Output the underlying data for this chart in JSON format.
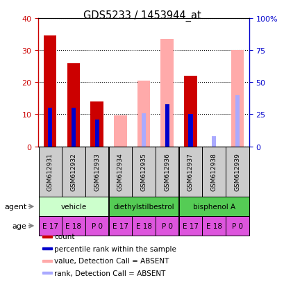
{
  "title": "GDS5233 / 1453944_at",
  "samples": [
    "GSM612931",
    "GSM612932",
    "GSM612933",
    "GSM612934",
    "GSM612935",
    "GSM612936",
    "GSM612937",
    "GSM612938",
    "GSM612939"
  ],
  "count_values": [
    34.5,
    26.0,
    14.0,
    null,
    null,
    null,
    22.0,
    null,
    null
  ],
  "rank_values": [
    30.0,
    30.0,
    21.0,
    null,
    null,
    33.0,
    25.0,
    null,
    null
  ],
  "absent_value_bars": [
    null,
    null,
    null,
    24.0,
    51.5,
    83.5,
    null,
    null,
    75.0
  ],
  "absent_rank_bars": [
    null,
    null,
    null,
    null,
    26.0,
    33.0,
    null,
    8.0,
    40.0
  ],
  "left_ylim": [
    0,
    40
  ],
  "right_ylim": [
    0,
    100
  ],
  "left_yticks": [
    0,
    10,
    20,
    30,
    40
  ],
  "right_yticks": [
    0,
    25,
    50,
    75,
    100
  ],
  "right_yticklabels": [
    "0",
    "25",
    "50",
    "75",
    "100%"
  ],
  "left_ycolor": "#cc0000",
  "right_ycolor": "#0000cc",
  "count_color": "#cc0000",
  "rank_color": "#0000cc",
  "absent_value_color": "#ffaaaa",
  "absent_rank_color": "#aaaaff",
  "agents": [
    {
      "label": "vehicle",
      "span": [
        0,
        3
      ],
      "color": "#ccffcc"
    },
    {
      "label": "diethylstilbestrol",
      "span": [
        3,
        6
      ],
      "color": "#44cc44"
    },
    {
      "label": "bisphenol A",
      "span": [
        6,
        9
      ],
      "color": "#44cc44"
    }
  ],
  "ages": [
    "E 17",
    "E 18",
    "P 0",
    "E 17",
    "E 18",
    "P 0",
    "E 17",
    "E 18",
    "P 0"
  ],
  "age_color": "#dd55dd",
  "bg_color": "#ffffff",
  "sample_box_color": "#cccccc",
  "legend_items": [
    {
      "color": "#cc0000",
      "label": "count"
    },
    {
      "color": "#0000cc",
      "label": "percentile rank within the sample"
    },
    {
      "color": "#ffaaaa",
      "label": "value, Detection Call = ABSENT"
    },
    {
      "color": "#aaaaff",
      "label": "rank, Detection Call = ABSENT"
    }
  ]
}
